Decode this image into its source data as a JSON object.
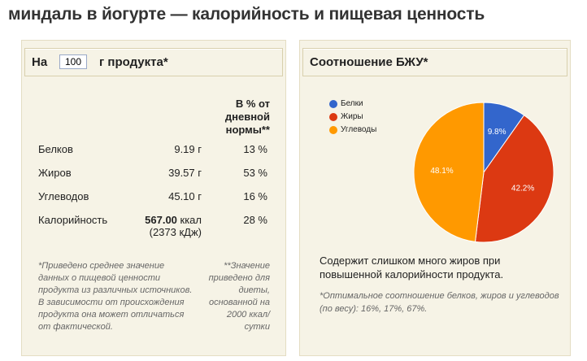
{
  "title": "миндаль в йогурте — калорийность и пищевая ценность",
  "left_panel": {
    "header_prefix": "На",
    "quantity": "100",
    "header_suffix": "г продукта*",
    "column_header": "В % от дневной нормы**",
    "rows": [
      {
        "label": "Белков",
        "amount": "9.19 г",
        "percent": "13 %"
      },
      {
        "label": "Жиров",
        "amount": "39.57 г",
        "percent": "53 %"
      },
      {
        "label": "Углеводов",
        "amount": "45.10 г",
        "percent": "16 %"
      },
      {
        "label": "Калорийность",
        "amount_bold": "567.00",
        "amount_unit": " ккал",
        "amount_sub": "(2373 кДж)",
        "percent": "28 %"
      }
    ],
    "footnote_left": "*Приведено среднее значение данных о пищевой ценности продукта из различных источников. В зависимости от происхождения продукта она может отличаться от фактической.",
    "footnote_right": "**Значение приведено для диеты, основанной на 2000 ккал/сутки"
  },
  "right_panel": {
    "header": "Соотношение БЖУ*",
    "note": "Содержит слишком много жиров при повышенной калорийности продукта.",
    "footnote": "*Оптимальное соотношение белков, жиров и углеводов (по весу): 16%, 17%, 67%."
  },
  "chart_data": {
    "type": "pie",
    "title": "Соотношение БЖУ",
    "legend_position": "top-left",
    "slices": [
      {
        "name": "Белки",
        "value": 9.8,
        "label": "9.8%",
        "color": "#3366cc"
      },
      {
        "name": "Жиры",
        "value": 42.2,
        "label": "42.2%",
        "color": "#dc3912"
      },
      {
        "name": "Углеводы",
        "value": 48.1,
        "label": "48.1%",
        "color": "#ff9900"
      }
    ]
  }
}
